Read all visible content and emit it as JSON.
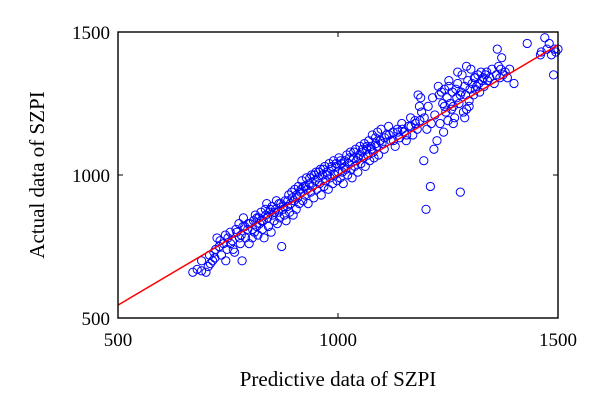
{
  "chart_data": {
    "type": "scatter",
    "title": "",
    "xlabel": "Predictive data of SZPI",
    "ylabel": "Actual data of SZPI",
    "xlim": [
      500,
      1500
    ],
    "ylim": [
      500,
      1500
    ],
    "xticks": [
      500,
      1000,
      1500
    ],
    "yticks": [
      500,
      1000,
      1500
    ],
    "grid": false,
    "marker_color": "#0000ff",
    "line_color": "#ff0000",
    "series": [
      {
        "type": "scatter",
        "points": [
          [
            670,
            660
          ],
          [
            680,
            670
          ],
          [
            690,
            665
          ],
          [
            700,
            660
          ],
          [
            705,
            680
          ],
          [
            710,
            690
          ],
          [
            715,
            700
          ],
          [
            720,
            710
          ],
          [
            722,
            740
          ],
          [
            725,
            780
          ],
          [
            730,
            750
          ],
          [
            735,
            720
          ],
          [
            740,
            760
          ],
          [
            745,
            700
          ],
          [
            748,
            740
          ],
          [
            750,
            780
          ],
          [
            755,
            800
          ],
          [
            760,
            770
          ],
          [
            762,
            740
          ],
          [
            765,
            730
          ],
          [
            770,
            800
          ],
          [
            775,
            830
          ],
          [
            778,
            760
          ],
          [
            780,
            790
          ],
          [
            782,
            700
          ],
          [
            785,
            850
          ],
          [
            788,
            820
          ],
          [
            790,
            780
          ],
          [
            795,
            810
          ],
          [
            798,
            760
          ],
          [
            800,
            830
          ],
          [
            805,
            780
          ],
          [
            808,
            840
          ],
          [
            810,
            800
          ],
          [
            812,
            860
          ],
          [
            815,
            820
          ],
          [
            818,
            790
          ],
          [
            820,
            850
          ],
          [
            822,
            830
          ],
          [
            825,
            870
          ],
          [
            828,
            810
          ],
          [
            830,
            840
          ],
          [
            832,
            780
          ],
          [
            835,
            880
          ],
          [
            838,
            900
          ],
          [
            840,
            850
          ],
          [
            842,
            820
          ],
          [
            845,
            870
          ],
          [
            848,
            800
          ],
          [
            850,
            890
          ],
          [
            852,
            860
          ],
          [
            855,
            840
          ],
          [
            858,
            880
          ],
          [
            860,
            910
          ],
          [
            862,
            830
          ],
          [
            865,
            870
          ],
          [
            868,
            850
          ],
          [
            870,
            900
          ],
          [
            872,
            750
          ],
          [
            875,
            880
          ],
          [
            878,
            860
          ],
          [
            880,
            910
          ],
          [
            882,
            840
          ],
          [
            885,
            890
          ],
          [
            888,
            930
          ],
          [
            890,
            870
          ],
          [
            892,
            900
          ],
          [
            895,
            940
          ],
          [
            898,
            860
          ],
          [
            900,
            910
          ],
          [
            902,
            950
          ],
          [
            905,
            880
          ],
          [
            908,
            920
          ],
          [
            910,
            960
          ],
          [
            912,
            900
          ],
          [
            915,
            940
          ],
          [
            918,
            980
          ],
          [
            920,
            910
          ],
          [
            922,
            960
          ],
          [
            925,
            930
          ],
          [
            928,
            990
          ],
          [
            930,
            950
          ],
          [
            932,
            900
          ],
          [
            935,
            970
          ],
          [
            938,
            940
          ],
          [
            940,
            1000
          ],
          [
            942,
            960
          ],
          [
            945,
            920
          ],
          [
            948,
            980
          ],
          [
            950,
            1010
          ],
          [
            952,
            950
          ],
          [
            955,
            990
          ],
          [
            958,
            970
          ],
          [
            960,
            1020
          ],
          [
            962,
            930
          ],
          [
            965,
            1000
          ],
          [
            968,
            960
          ],
          [
            970,
            1030
          ],
          [
            972,
            980
          ],
          [
            975,
            1010
          ],
          [
            978,
            950
          ],
          [
            980,
            1040
          ],
          [
            982,
            990
          ],
          [
            985,
            1020
          ],
          [
            988,
            970
          ],
          [
            990,
            1050
          ],
          [
            992,
            1000
          ],
          [
            995,
            1030
          ],
          [
            998,
            980
          ],
          [
            1000,
            1010
          ],
          [
            1002,
            1060
          ],
          [
            1005,
            990
          ],
          [
            1008,
            1040
          ],
          [
            1010,
            1010
          ],
          [
            1012,
            970
          ],
          [
            1015,
            1050
          ],
          [
            1018,
            1020
          ],
          [
            1020,
            1070
          ],
          [
            1022,
            1000
          ],
          [
            1025,
            1040
          ],
          [
            1028,
            1080
          ],
          [
            1030,
            1020
          ],
          [
            1032,
            990
          ],
          [
            1035,
            1060
          ],
          [
            1038,
            1030
          ],
          [
            1040,
            1090
          ],
          [
            1042,
            1050
          ],
          [
            1045,
            1010
          ],
          [
            1048,
            1070
          ],
          [
            1050,
            1100
          ],
          [
            1052,
            1040
          ],
          [
            1055,
            1080
          ],
          [
            1058,
            1060
          ],
          [
            1060,
            1110
          ],
          [
            1062,
            1030
          ],
          [
            1065,
            1090
          ],
          [
            1068,
            1070
          ],
          [
            1070,
            1120
          ],
          [
            1072,
            1050
          ],
          [
            1075,
            1100
          ],
          [
            1078,
            1140
          ],
          [
            1080,
            1080
          ],
          [
            1082,
            1060
          ],
          [
            1085,
            1130
          ],
          [
            1088,
            1100
          ],
          [
            1090,
            1150
          ],
          [
            1092,
            1070
          ],
          [
            1095,
            1120
          ],
          [
            1098,
            1160
          ],
          [
            1100,
            1110
          ],
          [
            1105,
            1090
          ],
          [
            1110,
            1140
          ],
          [
            1115,
            1170
          ],
          [
            1120,
            1120
          ],
          [
            1125,
            1150
          ],
          [
            1130,
            1100
          ],
          [
            1135,
            1160
          ],
          [
            1140,
            1130
          ],
          [
            1145,
            1180
          ],
          [
            1150,
            1150
          ],
          [
            1155,
            1120
          ],
          [
            1160,
            1170
          ],
          [
            1165,
            1200
          ],
          [
            1170,
            1140
          ],
          [
            1175,
            1190
          ],
          [
            1180,
            1160
          ],
          [
            1182,
            1280
          ],
          [
            1185,
            1240
          ],
          [
            1188,
            1270
          ],
          [
            1190,
            1220
          ],
          [
            1195,
            1050
          ],
          [
            1200,
            880
          ],
          [
            1202,
            1160
          ],
          [
            1205,
            1240
          ],
          [
            1210,
            960
          ],
          [
            1212,
            1180
          ],
          [
            1215,
            1270
          ],
          [
            1218,
            1090
          ],
          [
            1220,
            1210
          ],
          [
            1225,
            1120
          ],
          [
            1228,
            1310
          ],
          [
            1230,
            1280
          ],
          [
            1232,
            1180
          ],
          [
            1235,
            1290
          ],
          [
            1238,
            1250
          ],
          [
            1240,
            1150
          ],
          [
            1242,
            1300
          ],
          [
            1245,
            1220
          ],
          [
            1248,
            1270
          ],
          [
            1250,
            1190
          ],
          [
            1252,
            1310
          ],
          [
            1255,
            1250
          ],
          [
            1258,
            1230
          ],
          [
            1260,
            1290
          ],
          [
            1262,
            1240
          ],
          [
            1265,
            1200
          ],
          [
            1268,
            1300
          ],
          [
            1270,
            1270
          ],
          [
            1272,
            1320
          ],
          [
            1275,
            1250
          ],
          [
            1278,
            940
          ],
          [
            1280,
            1290
          ],
          [
            1282,
            1350
          ],
          [
            1285,
            1220
          ],
          [
            1288,
            1310
          ],
          [
            1290,
            1280
          ],
          [
            1292,
            1230
          ],
          [
            1295,
            1330
          ],
          [
            1298,
            1260
          ],
          [
            1300,
            1300
          ],
          [
            1302,
            1370
          ],
          [
            1305,
            1320
          ],
          [
            1308,
            1280
          ],
          [
            1310,
            1340
          ],
          [
            1312,
            1300
          ],
          [
            1315,
            1310
          ],
          [
            1318,
            1350
          ],
          [
            1320,
            1320
          ],
          [
            1322,
            1290
          ],
          [
            1325,
            1360
          ],
          [
            1328,
            1330
          ],
          [
            1330,
            1340
          ],
          [
            1332,
            1310
          ],
          [
            1335,
            1350
          ],
          [
            1338,
            1360
          ],
          [
            1340,
            1330
          ],
          [
            1345,
            1340
          ],
          [
            1350,
            1370
          ],
          [
            1355,
            1320
          ],
          [
            1360,
            1350
          ],
          [
            1362,
            1440
          ],
          [
            1365,
            1380
          ],
          [
            1368,
            1340
          ],
          [
            1370,
            1370
          ],
          [
            1375,
            1350
          ],
          [
            1380,
            1360
          ],
          [
            1385,
            1340
          ],
          [
            1390,
            1370
          ],
          [
            1400,
            1320
          ],
          [
            1430,
            1460
          ],
          [
            1460,
            1420
          ],
          [
            1470,
            1480
          ],
          [
            1475,
            1440
          ],
          [
            1480,
            1460
          ],
          [
            1485,
            1420
          ],
          [
            1490,
            1350
          ],
          [
            1492,
            1440
          ],
          [
            1495,
            1430
          ],
          [
            1500,
            1440
          ],
          [
            1372,
            1410
          ],
          [
            1462,
            1430
          ],
          [
            1252,
            1330
          ],
          [
            1272,
            1360
          ],
          [
            1292,
            1380
          ],
          [
            1312,
            1340
          ],
          [
            1242,
            1240
          ],
          [
            1262,
            1180
          ],
          [
            1288,
            1200
          ],
          [
            1298,
            1240
          ],
          [
            1278,
            1280
          ],
          [
            690,
            700
          ],
          [
            708,
            720
          ],
          [
            718,
            730
          ],
          [
            732,
            770
          ],
          [
            744,
            790
          ],
          [
            756,
            760
          ],
          [
            768,
            810
          ],
          [
            776,
            780
          ],
          [
            784,
            820
          ],
          [
            796,
            830
          ],
          [
            806,
            810
          ],
          [
            816,
            850
          ],
          [
            826,
            840
          ],
          [
            836,
            860
          ],
          [
            846,
            880
          ],
          [
            856,
            870
          ],
          [
            866,
            900
          ],
          [
            876,
            890
          ],
          [
            886,
            910
          ],
          [
            896,
            920
          ],
          [
            906,
            930
          ],
          [
            916,
            950
          ],
          [
            926,
            960
          ],
          [
            936,
            990
          ],
          [
            946,
            1000
          ],
          [
            956,
            1010
          ],
          [
            966,
            1020
          ],
          [
            976,
            1000
          ],
          [
            986,
            1030
          ],
          [
            996,
            1040
          ],
          [
            1006,
            1050
          ],
          [
            1016,
            1030
          ],
          [
            1026,
            1060
          ],
          [
            1036,
            1080
          ],
          [
            1046,
            1060
          ],
          [
            1056,
            1090
          ],
          [
            1066,
            1100
          ],
          [
            1076,
            1090
          ],
          [
            1086,
            1110
          ],
          [
            1096,
            1120
          ],
          [
            1106,
            1130
          ],
          [
            1116,
            1140
          ],
          [
            1126,
            1120
          ],
          [
            1136,
            1150
          ],
          [
            1146,
            1160
          ],
          [
            1156,
            1140
          ],
          [
            1166,
            1170
          ],
          [
            1176,
            1180
          ],
          [
            1186,
            1190
          ],
          [
            1196,
            1200
          ]
        ]
      },
      {
        "type": "line",
        "points": [
          [
            500,
            545
          ],
          [
            1500,
            1455
          ]
        ]
      }
    ]
  }
}
